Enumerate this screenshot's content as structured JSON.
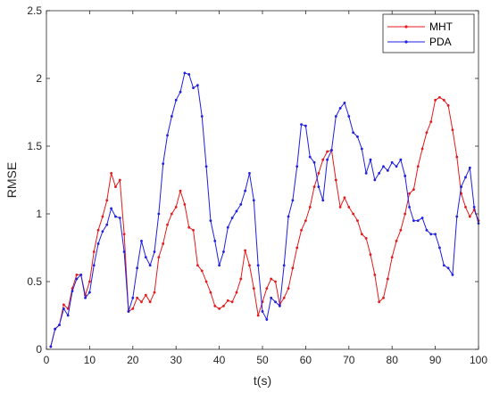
{
  "chart_data": {
    "type": "line",
    "xlabel": "t(s)",
    "ylabel": "RMSE",
    "xlim": [
      0,
      100
    ],
    "ylim": [
      0,
      2.5
    ],
    "xticks": [
      "0",
      "10",
      "20",
      "30",
      "40",
      "50",
      "60",
      "70",
      "80",
      "90",
      "100"
    ],
    "yticks": [
      "0",
      "0.5",
      "1",
      "1.5",
      "2",
      "2.5"
    ],
    "grid": false,
    "legend_position": "top-right",
    "x": [
      1,
      2,
      3,
      4,
      5,
      6,
      7,
      8,
      9,
      10,
      11,
      12,
      13,
      14,
      15,
      16,
      17,
      18,
      19,
      20,
      21,
      22,
      23,
      24,
      25,
      26,
      27,
      28,
      29,
      30,
      31,
      32,
      33,
      34,
      35,
      36,
      37,
      38,
      39,
      40,
      41,
      42,
      43,
      44,
      45,
      46,
      47,
      48,
      49,
      50,
      51,
      52,
      53,
      54,
      55,
      56,
      57,
      58,
      59,
      60,
      61,
      62,
      63,
      64,
      65,
      66,
      67,
      68,
      69,
      70,
      71,
      72,
      73,
      74,
      75,
      76,
      77,
      78,
      79,
      80,
      81,
      82,
      83,
      84,
      85,
      86,
      87,
      88,
      89,
      90,
      91,
      92,
      93,
      94,
      95,
      96,
      97,
      98,
      99,
      100
    ],
    "series": [
      {
        "name": "MHT",
        "color": "#e41a1c",
        "values": [
          0.02,
          0.15,
          0.18,
          0.33,
          0.3,
          0.45,
          0.55,
          0.55,
          0.4,
          0.5,
          0.72,
          0.88,
          0.98,
          1.1,
          1.3,
          1.2,
          1.25,
          0.85,
          0.28,
          0.3,
          0.38,
          0.35,
          0.4,
          0.35,
          0.42,
          0.68,
          0.78,
          0.92,
          1.0,
          1.05,
          1.17,
          1.07,
          0.9,
          0.88,
          0.62,
          0.58,
          0.5,
          0.42,
          0.32,
          0.3,
          0.32,
          0.36,
          0.35,
          0.42,
          0.52,
          0.73,
          0.62,
          0.45,
          0.25,
          0.35,
          0.45,
          0.52,
          0.5,
          0.33,
          0.38,
          0.45,
          0.6,
          0.75,
          0.88,
          0.95,
          1.05,
          1.2,
          1.3,
          1.4,
          1.46,
          1.47,
          1.25,
          1.05,
          1.12,
          1.05,
          1.0,
          0.95,
          0.85,
          0.82,
          0.7,
          0.55,
          0.35,
          0.38,
          0.52,
          0.68,
          0.8,
          0.88,
          1.0,
          1.15,
          1.18,
          1.35,
          1.48,
          1.6,
          1.68,
          1.84,
          1.86,
          1.84,
          1.8,
          1.62,
          1.42,
          1.15,
          1.05,
          0.98,
          1.03,
          0.95
        ]
      },
      {
        "name": "PDA",
        "color": "#1f1fe0",
        "values": [
          0.02,
          0.15,
          0.18,
          0.3,
          0.25,
          0.43,
          0.52,
          0.55,
          0.38,
          0.42,
          0.62,
          0.78,
          0.87,
          0.92,
          1.04,
          0.98,
          0.97,
          0.72,
          0.28,
          0.38,
          0.6,
          0.8,
          0.68,
          0.62,
          0.72,
          1.0,
          1.37,
          1.58,
          1.72,
          1.84,
          1.9,
          2.04,
          2.03,
          1.93,
          1.95,
          1.72,
          1.35,
          0.95,
          0.8,
          0.62,
          0.72,
          0.9,
          0.97,
          1.02,
          1.07,
          1.17,
          1.3,
          1.1,
          0.62,
          0.28,
          0.22,
          0.38,
          0.35,
          0.32,
          0.62,
          0.98,
          1.1,
          1.35,
          1.66,
          1.65,
          1.42,
          1.38,
          1.2,
          1.1,
          1.4,
          1.47,
          1.72,
          1.78,
          1.82,
          1.72,
          1.6,
          1.57,
          1.48,
          1.3,
          1.4,
          1.25,
          1.3,
          1.35,
          1.32,
          1.38,
          1.35,
          1.4,
          1.28,
          1.05,
          0.95,
          0.95,
          0.97,
          0.88,
          0.85,
          0.85,
          0.75,
          0.62,
          0.6,
          0.55,
          0.98,
          1.2,
          1.27,
          1.34,
          1.05,
          0.93
        ]
      }
    ]
  }
}
